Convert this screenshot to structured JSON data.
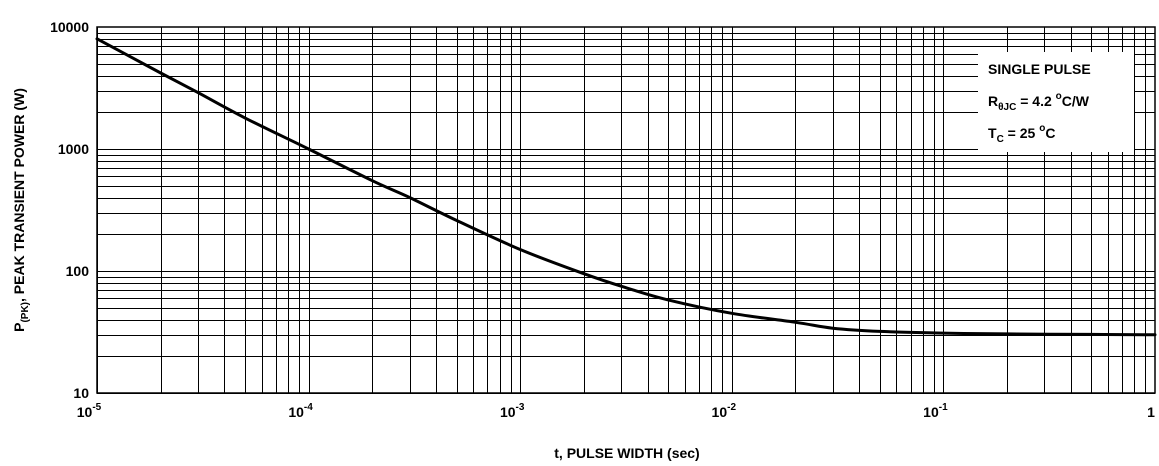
{
  "chart_data": {
    "type": "line",
    "xlabel": "t, PULSE WIDTH (sec)",
    "ylabel": {
      "main": "P",
      "sub": "(PK)",
      "rest": ", PEAK TRANSIENT POWER (W)"
    },
    "xscale": "log",
    "yscale": "log",
    "xlim": [
      1e-05,
      1
    ],
    "ylim": [
      10,
      10000
    ],
    "grid": true,
    "x_ticks": [
      {
        "base": "10",
        "exp": "-5"
      },
      {
        "base": "10",
        "exp": "-4"
      },
      {
        "base": "10",
        "exp": "-3"
      },
      {
        "base": "10",
        "exp": "-2"
      },
      {
        "base": "10",
        "exp": "-1"
      },
      {
        "base": "1",
        "exp": ""
      }
    ],
    "y_ticks": [
      "10",
      "100",
      "1000",
      "10000"
    ],
    "legend": {
      "placement": "top-right",
      "line1": "SINGLE PULSE",
      "line2": {
        "main": "R",
        "sub": "θJC",
        "rest": " = 4.2 ",
        "sup": "o",
        "unit": "C/W"
      },
      "line3": {
        "main": "T",
        "sub": "C",
        "rest": " = 25 ",
        "sup": "o",
        "unit": "C"
      }
    },
    "series": [
      {
        "color": "#000000",
        "x": [
          1e-05,
          2e-05,
          3e-05,
          5e-05,
          0.0001,
          0.0002,
          0.0003,
          0.0005,
          0.001,
          0.002,
          0.003,
          0.005,
          0.01,
          0.02,
          0.03,
          0.05,
          0.1,
          0.2,
          0.5,
          1
        ],
        "y": [
          8000,
          4200,
          2900,
          1800,
          1000,
          550,
          400,
          260,
          150,
          95,
          75,
          58,
          45,
          38,
          34,
          32,
          31,
          30.5,
          30.2,
          30
        ]
      }
    ]
  }
}
